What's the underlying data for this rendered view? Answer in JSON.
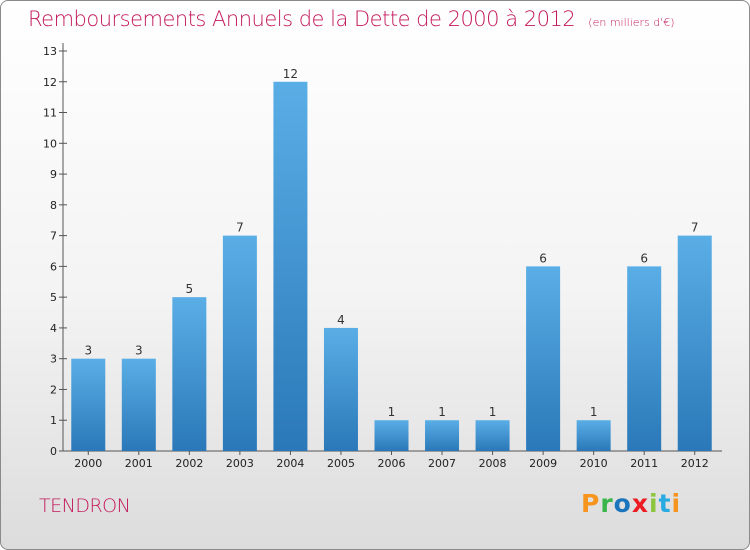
{
  "title": "Remboursements Annuels de la Dette de 2000 à 2012",
  "subtitle": "(en milliers d'€)",
  "commune": "TENDRON",
  "brand": "Proxiti",
  "brand_colors": [
    "#f7941d",
    "#39b54a",
    "#1b75bc",
    "#ed1c24",
    "#8cc63f",
    "#29abe2",
    "#f7941d"
  ],
  "chart_data": {
    "type": "bar",
    "title": "Remboursements Annuels de la Dette de 2000 à 2012",
    "subtitle": "(en milliers d'€)",
    "categories": [
      "2000",
      "2001",
      "2002",
      "2003",
      "2004",
      "2005",
      "2006",
      "2007",
      "2008",
      "2009",
      "2010",
      "2011",
      "2012"
    ],
    "values": [
      3,
      3,
      5,
      7,
      12,
      4,
      1,
      1,
      1,
      6,
      1,
      6,
      7
    ],
    "data_labels": [
      "3",
      "3",
      "5",
      "7",
      "12",
      "4",
      "1",
      "1",
      "1",
      "6",
      "1",
      "6",
      "7"
    ],
    "yticks": [
      "0",
      "1",
      "2",
      "3",
      "4",
      "5",
      "6",
      "7",
      "8",
      "9",
      "10",
      "11",
      "12",
      "13"
    ],
    "ylim": [
      0,
      13
    ],
    "grid": false,
    "bar_color": "#4a9fdc",
    "bar_color_dark": "#2a78b8"
  }
}
